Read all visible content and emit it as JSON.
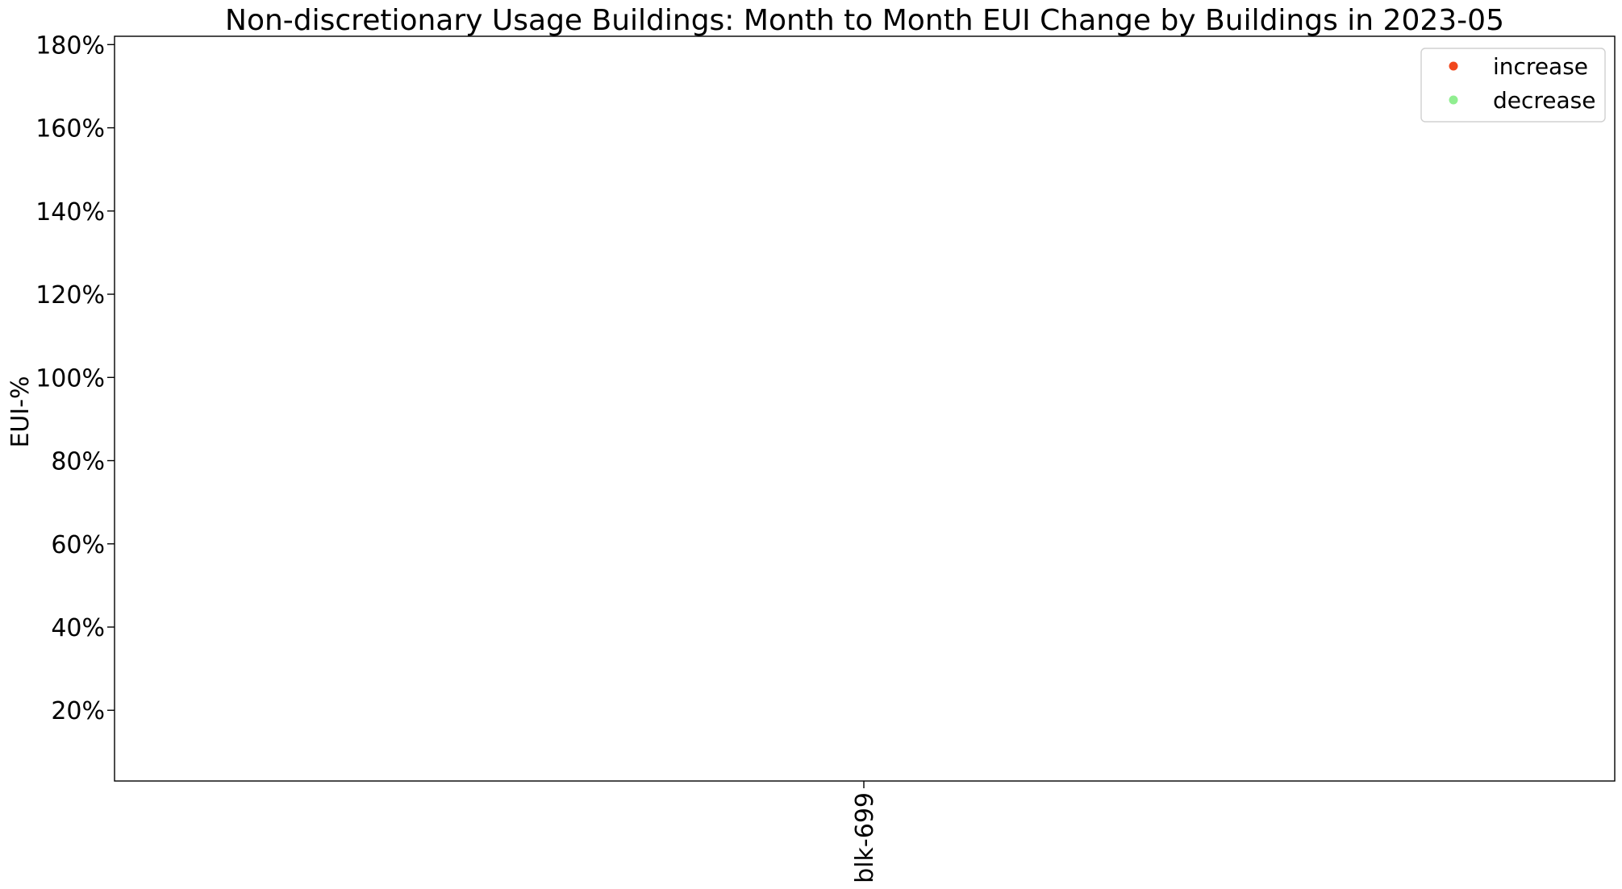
{
  "chart_data": {
    "type": "scatter",
    "title": "Non-discretionary Usage Buildings:  Month to Month EUI Change by Buildings in 2023-05",
    "xlabel": "",
    "ylabel": "EUI-%",
    "categories": [
      "blk-699"
    ],
    "y_ticks": [
      {
        "value": 20,
        "label": "20%"
      },
      {
        "value": 40,
        "label": "40%"
      },
      {
        "value": 60,
        "label": "60%"
      },
      {
        "value": 80,
        "label": "80%"
      },
      {
        "value": 100,
        "label": "100%"
      },
      {
        "value": 120,
        "label": "120%"
      },
      {
        "value": 140,
        "label": "140%"
      },
      {
        "value": 160,
        "label": "160%"
      },
      {
        "value": 180,
        "label": "180%"
      }
    ],
    "ylim": [
      3,
      182
    ],
    "grid": false,
    "legend_position": "top-right",
    "series": [
      {
        "name": "increase",
        "color": "#f1471d",
        "values": []
      },
      {
        "name": "decrease",
        "color": "#90ee90",
        "values": []
      }
    ]
  }
}
